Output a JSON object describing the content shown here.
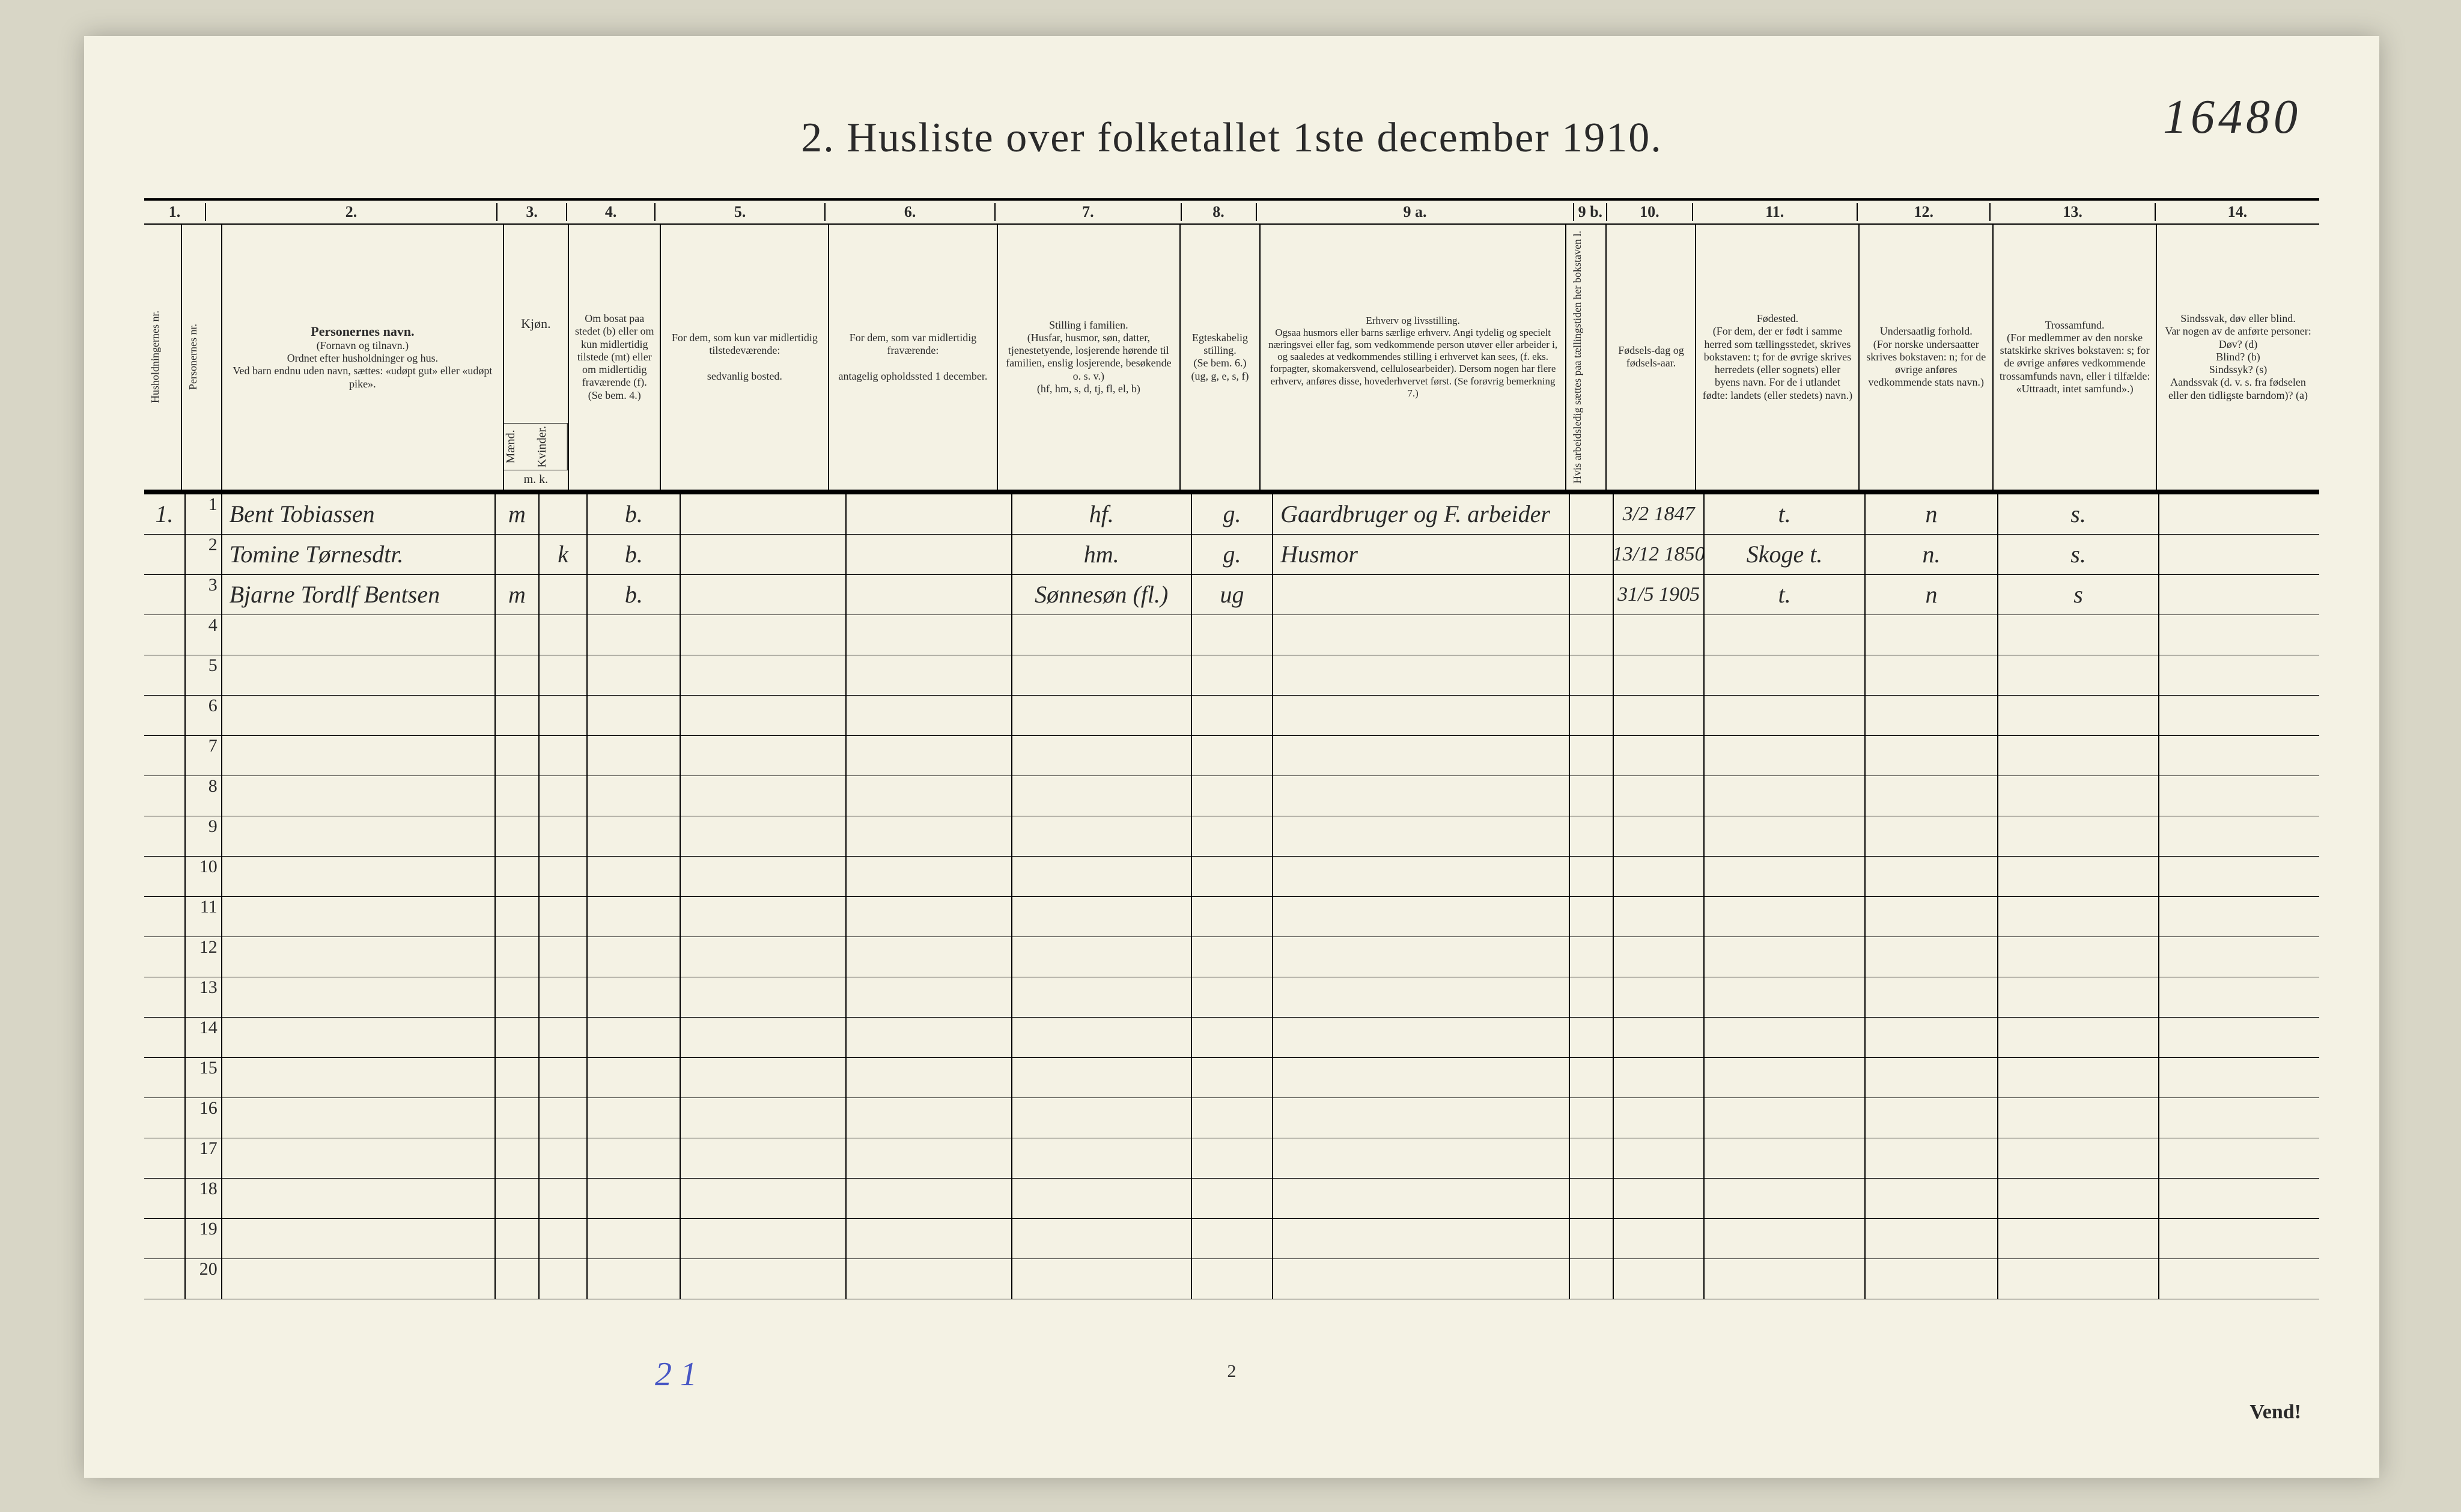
{
  "title": "2.  Husliste over folketallet 1ste december 1910.",
  "page_number_handwritten": "16480",
  "bottom_page_num": "2",
  "bottom_pencil": "2 1",
  "vend": "Vend!",
  "col_numbers": [
    "1.",
    "2.",
    "3.",
    "4.",
    "5.",
    "6.",
    "7.",
    "8.",
    "9 a.",
    "9 b.",
    "10.",
    "11.",
    "12.",
    "13.",
    "14."
  ],
  "headers": {
    "c1a": "Husholdningernes nr.",
    "c1b": "Personernes nr.",
    "c2_title": "Personernes navn.",
    "c2_sub": "(Fornavn og tilnavn.)\nOrdnet efter husholdninger og hus.\nVed barn endnu uden navn, sættes: «udøpt gut» eller «udøpt pike».",
    "c3_title": "Kjøn.",
    "c3_m": "Mænd.",
    "c3_k": "Kvinder.",
    "c3_mk": "m.   k.",
    "c4": "Om bosat paa stedet (b) eller om kun midlertidig tilstede (mt) eller om midlertidig fraværende (f). (Se bem. 4.)",
    "c5": "For dem, som kun var midlertidig tilstedeværende:\n\nsedvanlig bosted.",
    "c6": "For dem, som var midlertidig fraværende:\n\nantagelig opholdssted 1 december.",
    "c7": "Stilling i familien.\n(Husfar, husmor, søn, datter, tjenestetyende, losjerende hørende til familien, enslig losjerende, besøkende o. s. v.)\n(hf, hm, s, d, tj, fl, el, b)",
    "c8": "Egteskabelig stilling.\n(Se bem. 6.)\n(ug, g, e, s, f)",
    "c9a": "Erhverv og livsstilling.\nOgsaa husmors eller barns særlige erhverv. Angi tydelig og specielt næringsvei eller fag, som vedkommende person utøver eller arbeider i, og saaledes at vedkommendes stilling i erhvervet kan sees, (f. eks. forpagter, skomakersvend, cellulosearbeider). Dersom nogen har flere erhverv, anføres disse, hovederhvervet først. (Se forøvrig bemerkning 7.)",
    "c9b": "Hvis arbeidsledig sættes paa tællingstiden her bokstaven l.",
    "c10": "Fødsels-dag og fødsels-aar.",
    "c11": "Fødested.\n(For dem, der er født i samme herred som tællingsstedet, skrives bokstaven: t; for de øvrige skrives herredets (eller sognets) eller byens navn. For de i utlandet fødte: landets (eller stedets) navn.)",
    "c12": "Undersaatlig forhold.\n(For norske undersaatter skrives bokstaven: n; for de øvrige anføres vedkommende stats navn.)",
    "c13": "Trossamfund.\n(For medlemmer av den norske statskirke skrives bokstaven: s; for de øvrige anføres vedkommende trossamfunds navn, eller i tilfælde: «Uttraadt, intet samfund».)",
    "c14": "Sindssvak, døv eller blind.\nVar nogen av de anførte personer:\nDøv?      (d)\nBlind?     (b)\nSindssyk? (s)\nAandssvak (d. v. s. fra fødselen eller den tidligste barndom)?  (a)"
  },
  "rows": [
    {
      "hnr": "1.",
      "pnr": "1",
      "name": "Bent Tobiassen",
      "kjon_m": "m",
      "kjon_k": "",
      "c4": "b.",
      "c5": "",
      "c6": "",
      "c7": "hf.",
      "c8": "g.",
      "c9a": "Gaardbruger og F. arbeider",
      "c9b": "",
      "c10": "3/2 1847",
      "c11": "t.",
      "c12": "n",
      "c13": "s.",
      "c14": ""
    },
    {
      "hnr": "",
      "pnr": "2",
      "name": "Tomine Tørnesdtr.",
      "kjon_m": "",
      "kjon_k": "k",
      "c4": "b.",
      "c5": "",
      "c6": "",
      "c7": "hm.",
      "c8": "g.",
      "c9a": "Husmor",
      "c9b": "",
      "c10": "13/12 1850",
      "c11": "Skoge t.",
      "c12": "n.",
      "c13": "s.",
      "c14": ""
    },
    {
      "hnr": "",
      "pnr": "3",
      "name": "Bjarne Tordlf Bentsen",
      "kjon_m": "m",
      "kjon_k": "",
      "c4": "b.",
      "c5": "",
      "c6": "",
      "c7": "Sønnesøn (fl.)",
      "c8": "ug",
      "c9a": "",
      "c9b": "",
      "c10": "31/5 1905",
      "c11": "t.",
      "c12": "n",
      "c13": "s",
      "c14": ""
    }
  ],
  "blank_rows": 17,
  "row_labels_start": 4,
  "colors": {
    "paper": "#f4f2e4",
    "bg": "#d8d6c6",
    "ink": "#2a2a2a",
    "pencil": "#4756c4"
  }
}
